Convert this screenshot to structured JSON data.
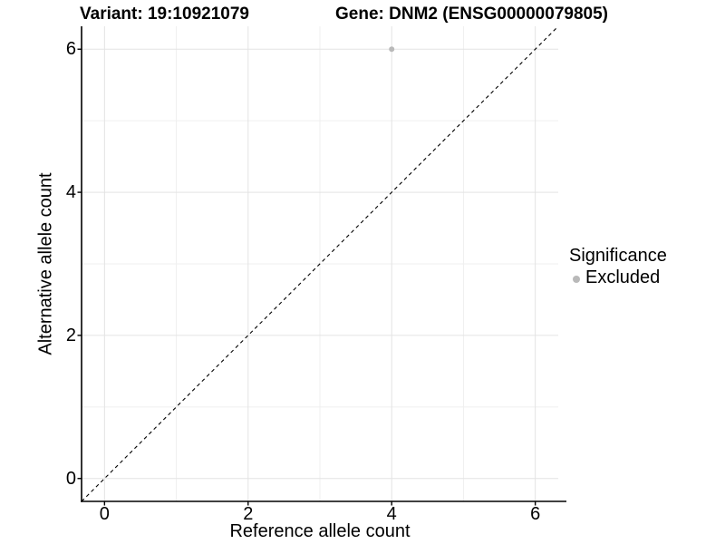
{
  "header": {
    "variant_title": "Variant: 19:10921079",
    "gene_title": "Gene: DNM2 (ENSG00000079805)"
  },
  "chart_data": {
    "type": "scatter",
    "xlabel": "Reference allele count",
    "ylabel": "Alternative allele count",
    "xlim": [
      -0.32,
      6.32
    ],
    "ylim": [
      -0.32,
      6.32
    ],
    "x_ticks": [
      0,
      2,
      4,
      6
    ],
    "y_ticks": [
      0,
      2,
      4,
      6
    ],
    "x_tick_labels": [
      "0",
      "2",
      "4",
      "6"
    ],
    "y_tick_labels": [
      "0",
      "2",
      "4",
      "6"
    ],
    "x_minor_ticks": [
      1,
      3,
      5
    ],
    "y_minor_ticks": [
      1,
      3,
      5
    ],
    "grid": true,
    "grid_major_color": "#e3e3e3",
    "grid_minor_color": "#efefef",
    "axis_color": "#000000",
    "reference_line": {
      "type": "abline",
      "slope": 1,
      "intercept": 0,
      "style": "dashed",
      "color": "#000000"
    },
    "series": [
      {
        "name": "Excluded",
        "color": "#b9b9b9",
        "points": [
          {
            "x": 4,
            "y": 6
          }
        ]
      }
    ],
    "legend": {
      "title": "Significance",
      "position": "right",
      "items": [
        {
          "label": "Excluded",
          "color": "#b9b9b9"
        }
      ]
    }
  }
}
